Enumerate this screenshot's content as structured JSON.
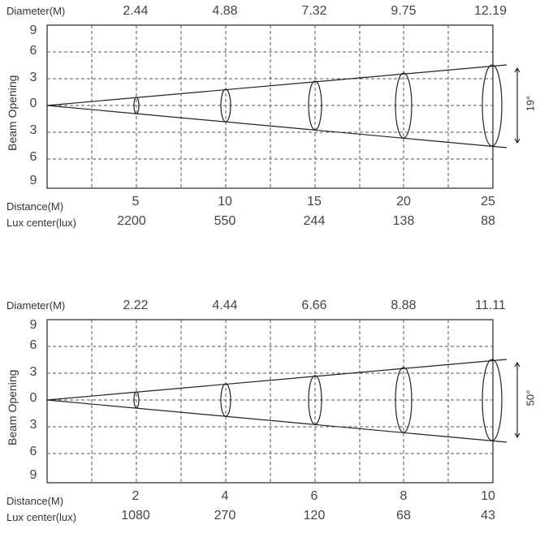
{
  "chart_data": [
    {
      "type": "beam-diagram",
      "diameter_label": "Diameter(M)",
      "diameters": [
        "2.44",
        "4.88",
        "7.32",
        "9.75",
        "12.19"
      ],
      "ylabel": "Beam Opening",
      "ytick_labels": [
        "9",
        "6",
        "3",
        "0",
        "3",
        "6",
        "9"
      ],
      "distance_label": "Distance(M)",
      "distances": [
        "5",
        "10",
        "15",
        "20",
        "25"
      ],
      "lux_label": "Lux center(lux)",
      "lux": [
        "2200",
        "550",
        "244",
        "138",
        "88"
      ],
      "beam_angle": "19°"
    },
    {
      "type": "beam-diagram",
      "diameter_label": "Diameter(M)",
      "diameters": [
        "2.22",
        "4.44",
        "6.66",
        "8.88",
        "11.11"
      ],
      "ylabel": "Beam Opening",
      "ytick_labels": [
        "9",
        "6",
        "3",
        "0",
        "3",
        "6",
        "9"
      ],
      "distance_label": "Distance(M)",
      "distances": [
        "2",
        "4",
        "6",
        "8",
        "10"
      ],
      "lux_label": "Lux center(lux)",
      "lux": [
        "1080",
        "270",
        "120",
        "68",
        "43"
      ],
      "beam_angle": "50°"
    }
  ]
}
